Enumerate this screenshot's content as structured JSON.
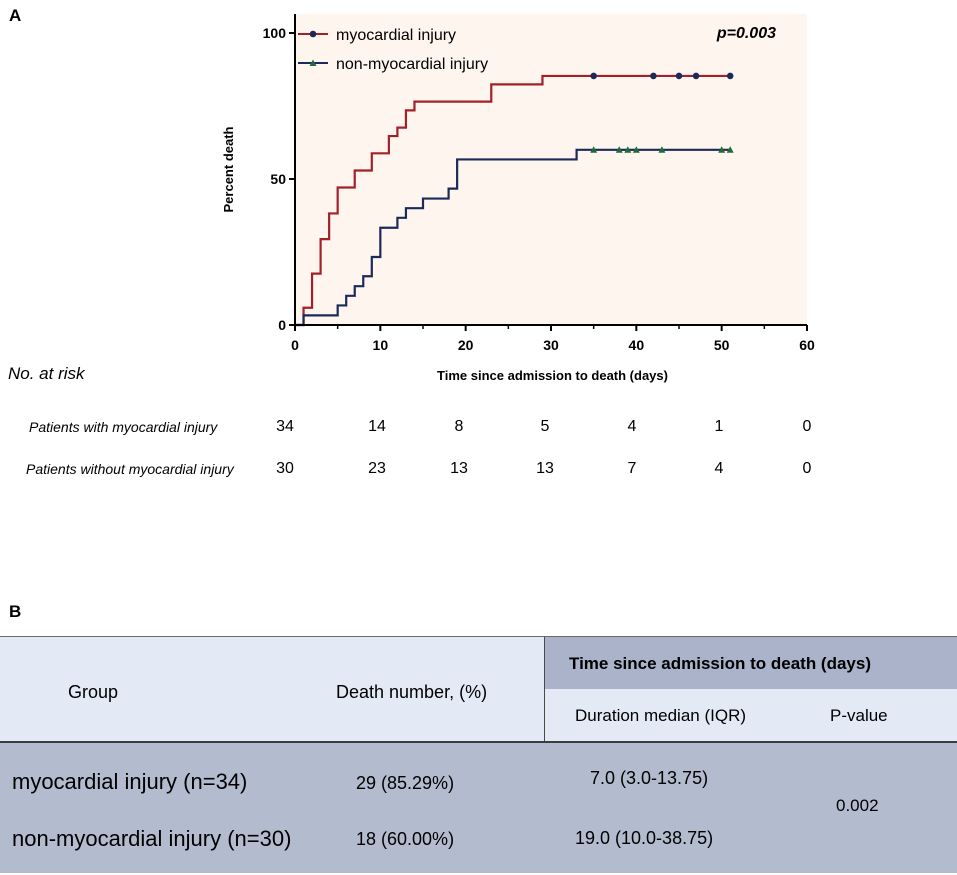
{
  "panel_a_label": "A",
  "panel_b_label": "B",
  "chart_data": {
    "type": "line",
    "title": "",
    "xlabel": "Time since admission to death (days)",
    "ylabel": "Percent death",
    "xlim": [
      0,
      60
    ],
    "ylim": [
      0,
      100
    ],
    "xticks": [
      0,
      10,
      20,
      30,
      40,
      50,
      60
    ],
    "yticks": [
      0,
      50,
      100
    ],
    "xtick_labels": [
      "0",
      "10",
      "20",
      "30",
      "40",
      "50",
      "60"
    ],
    "ytick_labels": [
      "0",
      "50",
      "100"
    ],
    "annotation": "p=0.003",
    "legend_position": "top-left",
    "series": [
      {
        "name": "myocardial injury",
        "color": "#a3202a",
        "marker": "circle",
        "marker_color": "#1c2a5a",
        "x": [
          0,
          1,
          2,
          3,
          4,
          5,
          7,
          9,
          11,
          12,
          13,
          14,
          23,
          29,
          51
        ],
        "y": [
          0,
          5.9,
          17.6,
          29.4,
          38.2,
          47.1,
          52.9,
          58.8,
          64.7,
          67.6,
          73.5,
          76.5,
          82.4,
          85.3,
          85.3
        ],
        "censored_x": [
          35,
          42,
          45,
          47,
          51
        ]
      },
      {
        "name": "non-myocardial injury",
        "color": "#1c2a5a",
        "marker": "triangle",
        "marker_color": "#1f6b3a",
        "x": [
          0,
          1,
          5,
          6,
          7,
          8,
          9,
          10,
          12,
          13,
          15,
          18,
          19,
          33,
          51
        ],
        "y": [
          0,
          3.3,
          6.7,
          10.0,
          13.3,
          16.7,
          23.3,
          33.3,
          36.7,
          40.0,
          43.3,
          46.7,
          56.7,
          60.0,
          60.0
        ],
        "censored_x": [
          35,
          38,
          39,
          40,
          43,
          50,
          51
        ]
      }
    ],
    "risk_table": {
      "title": "No. at risk",
      "rows": [
        {
          "label": "Patients with myocardial injury",
          "values": [
            "34",
            "14",
            "8",
            "5",
            "4",
            "1",
            "0"
          ]
        },
        {
          "label": "Patients without myocardial injury",
          "values": [
            "30",
            "23",
            "13",
            "13",
            "7",
            "4",
            "0"
          ]
        }
      ]
    }
  },
  "table": {
    "col_group": "Group",
    "col_death": "Death number, (%)",
    "col_time_header": "Time since admission to death (days)",
    "col_median": "Duration median (IQR)",
    "col_p": "P-value",
    "rows": [
      {
        "group": "myocardial injury (n=34)",
        "death": "29 (85.29%)",
        "median": "7.0 (3.0-13.75)"
      },
      {
        "group": "non-myocardial injury (n=30)",
        "death": "18 (60.00%)",
        "median": "19.0 (10.0-38.75)"
      }
    ],
    "p_value": "0.002"
  }
}
